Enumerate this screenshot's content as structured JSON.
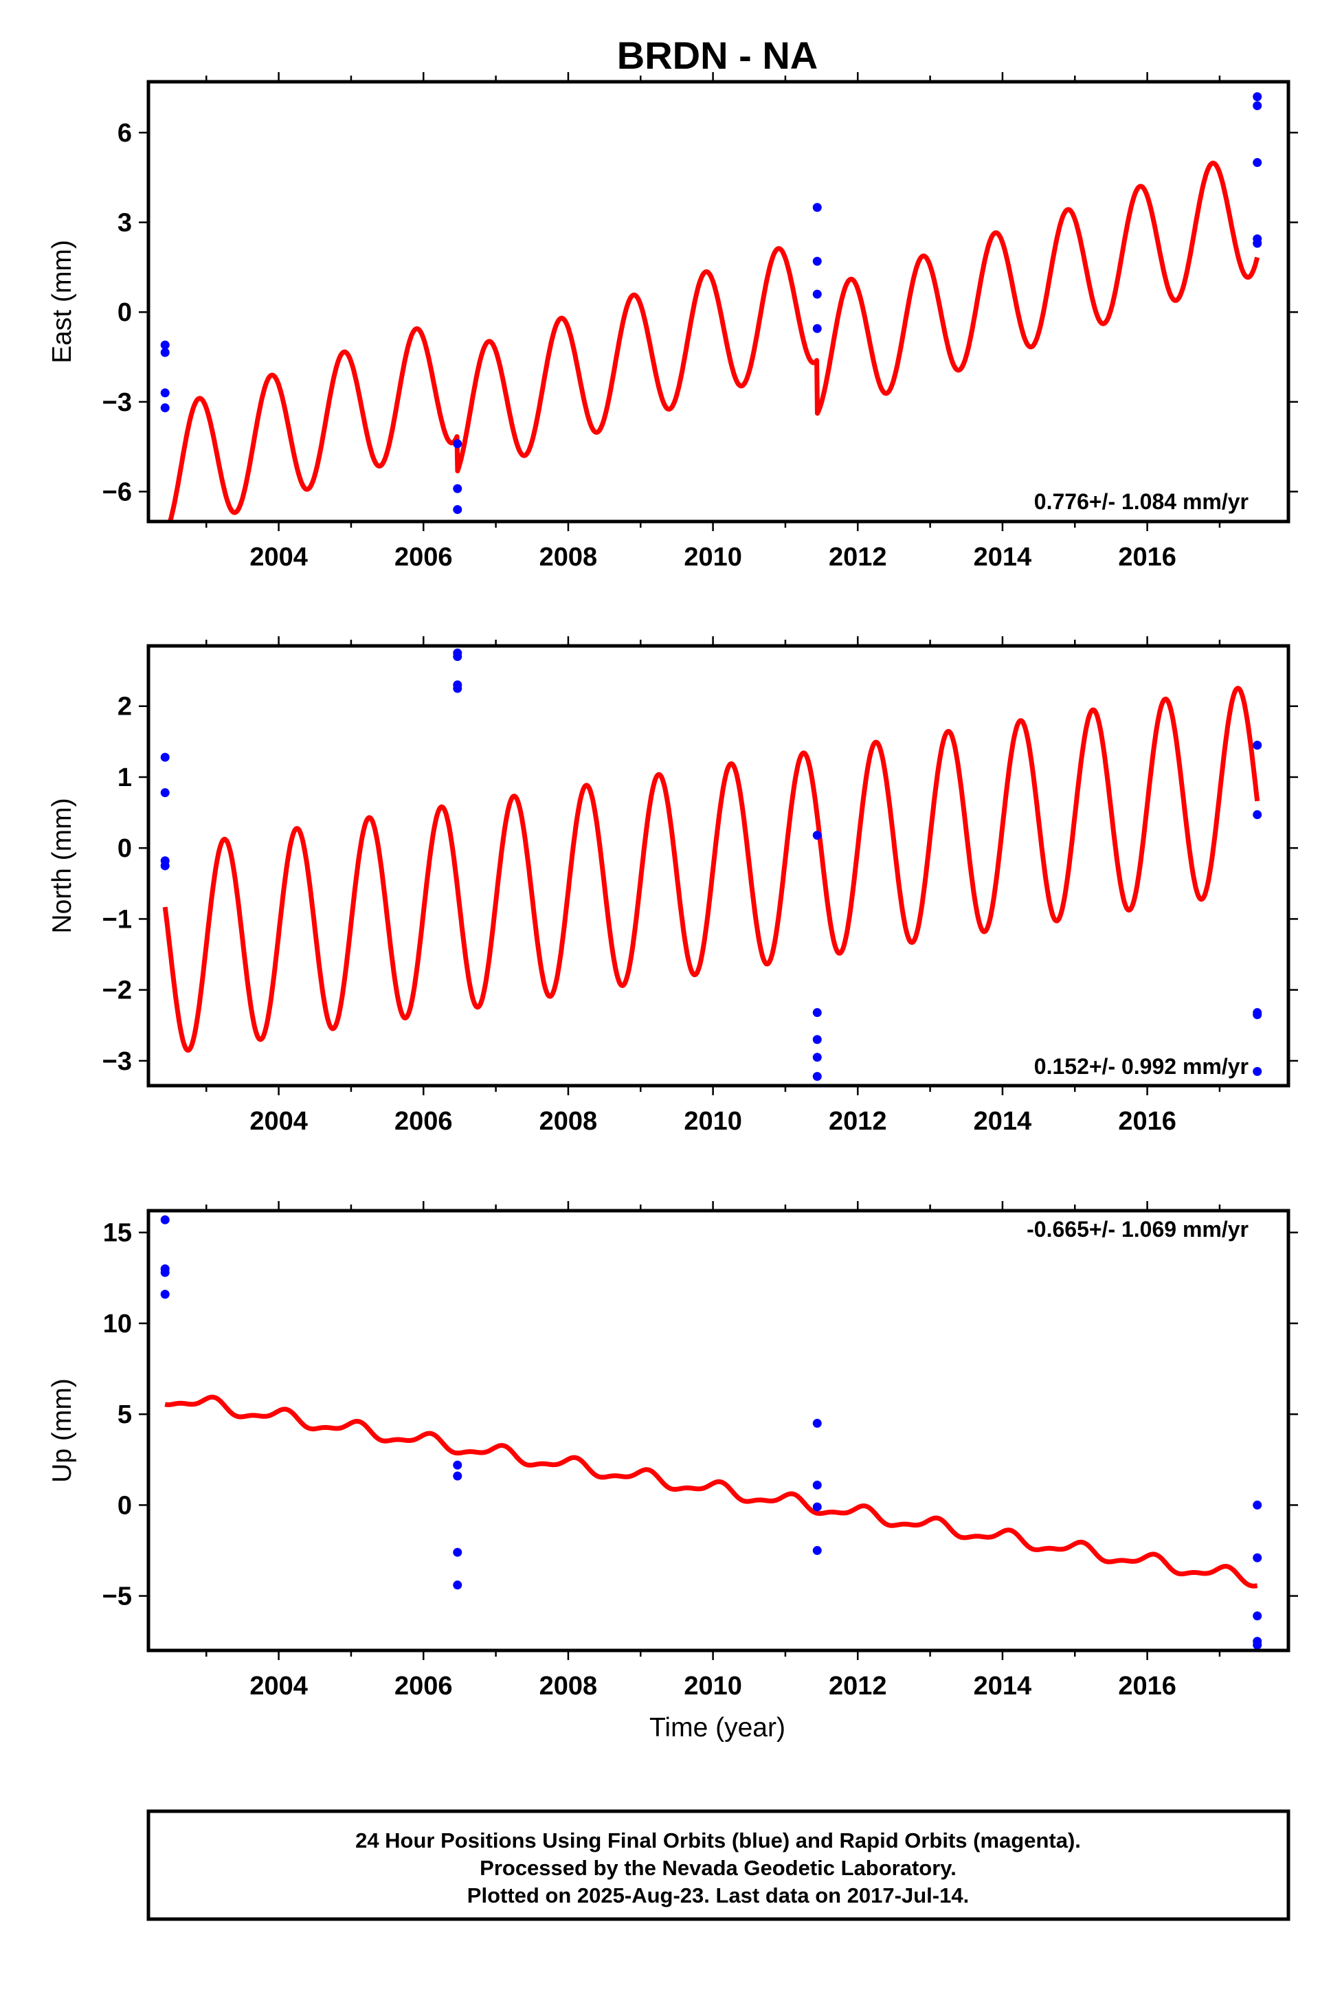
{
  "title": "BRDN - NA",
  "xlabel": "Time (year)",
  "footer": {
    "line1": "24 Hour Positions Using Final Orbits (blue) and Rapid Orbits (magenta).",
    "line2": "Processed by the Nevada Geodetic Laboratory.",
    "line3": "Plotted on 2025-Aug-23. Last data on 2017-Jul-14."
  },
  "colors": {
    "final_orbits": "#0000ff",
    "model_fit": "#ff0000",
    "frame": "#000000"
  },
  "chart_data": [
    {
      "type": "scatter",
      "name": "east",
      "ylabel": "East (mm)",
      "rate_label": "0.776+/- 1.084 mm/yr",
      "xlim": [
        2002.2,
        2017.95
      ],
      "ylim": [
        -7.0,
        7.7
      ],
      "xticks": [
        2004,
        2006,
        2008,
        2010,
        2012,
        2014,
        2016
      ],
      "yticks": [
        -6,
        -3,
        0,
        3,
        6
      ],
      "yticklabels": [
        "−6",
        "−3",
        "0",
        "3",
        "6"
      ],
      "points_final": [
        [
          2002.43,
          -1.1
        ],
        [
          2002.43,
          -1.35
        ],
        [
          2002.43,
          -2.7
        ],
        [
          2002.43,
          -3.2
        ],
        [
          2006.47,
          -4.4
        ],
        [
          2006.47,
          -5.9
        ],
        [
          2006.47,
          -6.6
        ],
        [
          2011.44,
          3.5
        ],
        [
          2011.44,
          1.7
        ],
        [
          2011.44,
          0.6
        ],
        [
          2011.44,
          -0.55
        ],
        [
          2017.52,
          7.2
        ],
        [
          2017.52,
          6.9
        ],
        [
          2017.52,
          5.0
        ],
        [
          2017.52,
          2.45
        ],
        [
          2017.52,
          2.3
        ]
      ],
      "model": {
        "start": 2002.43,
        "end": 2017.52,
        "offset": -5.35,
        "slope": 0.776,
        "annual_amp": 2.1,
        "annual_phase": 2.2,
        "semi_amp": 0.0,
        "semi_phase": 0.0,
        "steps": [
          [
            2006.47,
            -1.2
          ],
          [
            2011.44,
            -1.8
          ]
        ]
      }
    },
    {
      "type": "scatter",
      "name": "north",
      "ylabel": "North (mm)",
      "rate_label": "0.152+/- 0.992 mm/yr",
      "xlim": [
        2002.2,
        2017.95
      ],
      "ylim": [
        -3.35,
        2.85
      ],
      "xticks": [
        2004,
        2006,
        2008,
        2010,
        2012,
        2014,
        2016
      ],
      "yticks": [
        -3,
        -2,
        -1,
        0,
        1,
        2
      ],
      "yticklabels": [
        "−3",
        "−2",
        "−1",
        "0",
        "1",
        "2"
      ],
      "points_final": [
        [
          2002.43,
          1.28
        ],
        [
          2002.43,
          0.78
        ],
        [
          2002.43,
          -0.18
        ],
        [
          2002.43,
          -0.25
        ],
        [
          2006.47,
          2.75
        ],
        [
          2006.47,
          2.7
        ],
        [
          2006.47,
          2.3
        ],
        [
          2006.47,
          2.25
        ],
        [
          2011.44,
          0.18
        ],
        [
          2011.44,
          -2.32
        ],
        [
          2011.44,
          -2.7
        ],
        [
          2011.44,
          -2.95
        ],
        [
          2011.44,
          -3.22
        ],
        [
          2017.52,
          1.45
        ],
        [
          2017.52,
          0.47
        ],
        [
          2017.52,
          -2.32
        ],
        [
          2017.52,
          -2.35
        ],
        [
          2017.52,
          -3.15
        ]
      ],
      "model": {
        "start": 2002.43,
        "end": 2017.52,
        "offset": -1.45,
        "slope": 0.152,
        "annual_amp": 1.45,
        "annual_phase": 0.0,
        "semi_amp": 0.0,
        "semi_phase": 0.0,
        "steps": []
      }
    },
    {
      "type": "scatter",
      "name": "up",
      "ylabel": "Up (mm)",
      "rate_label": "-0.665+/- 1.069 mm/yr",
      "xlim": [
        2002.2,
        2017.95
      ],
      "ylim": [
        -8.0,
        16.2
      ],
      "xticks": [
        2004,
        2006,
        2008,
        2010,
        2012,
        2014,
        2016
      ],
      "yticks": [
        -5,
        0,
        5,
        10,
        15
      ],
      "yticklabels": [
        "−5",
        "0",
        "5",
        "10",
        "15"
      ],
      "points_final": [
        [
          2002.43,
          15.7
        ],
        [
          2002.43,
          13.0
        ],
        [
          2002.43,
          12.8
        ],
        [
          2002.43,
          11.6
        ],
        [
          2006.47,
          2.2
        ],
        [
          2006.47,
          1.6
        ],
        [
          2006.47,
          -2.6
        ],
        [
          2006.47,
          -4.4
        ],
        [
          2011.44,
          4.5
        ],
        [
          2011.44,
          1.1
        ],
        [
          2011.44,
          -0.1
        ],
        [
          2011.44,
          -2.5
        ],
        [
          2017.52,
          0.0
        ],
        [
          2017.52,
          -2.9
        ],
        [
          2017.52,
          -6.1
        ],
        [
          2017.52,
          -7.5
        ],
        [
          2017.52,
          -7.7
        ]
      ],
      "model": {
        "start": 2002.43,
        "end": 2017.52,
        "offset": 5.9,
        "slope": -0.665,
        "annual_amp": 0.35,
        "annual_phase": 1.2,
        "semi_amp": 0.15,
        "semi_phase": 0.0,
        "steps": []
      }
    }
  ]
}
